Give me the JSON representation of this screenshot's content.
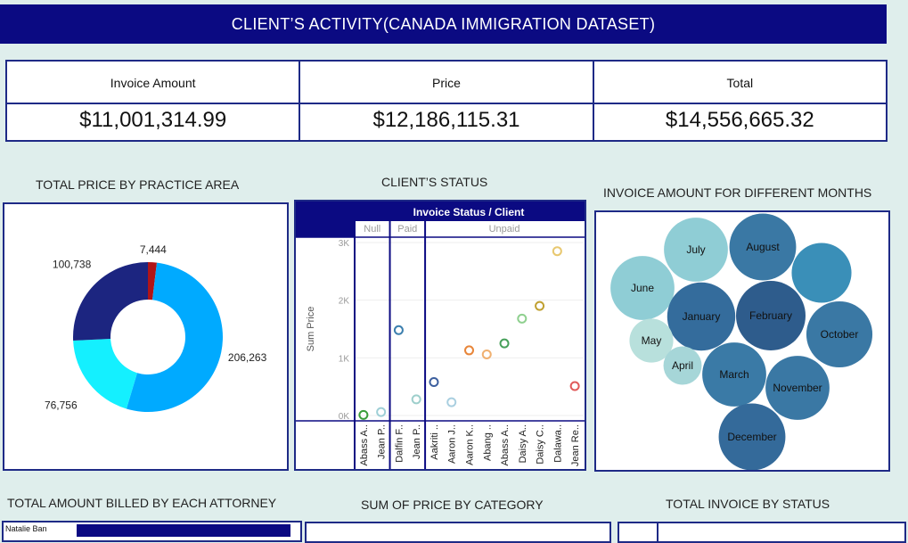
{
  "header": {
    "title": "CLIENT’S ACTIVITY(CANADA IMMIGRATION DATASET)"
  },
  "kpis": [
    {
      "label": "Invoice Amount",
      "value": "$11,001,314.99"
    },
    {
      "label": "Price",
      "value": "$12,186,115.31"
    },
    {
      "label": "Total",
      "value": "$14,556,665.32"
    }
  ],
  "sections": {
    "practice_area": "TOTAL  PRICE BY PRACTICE AREA",
    "client_status": "CLIENT’S STATUS",
    "months": "INVOICE AMOUNT FOR DIFFERENT MONTHS",
    "attorney": "TOTAL AMOUNT BILLED BY  EACH ATTORNEY",
    "category": "SUM OF PRICE BY CATEGORY",
    "invoice_status": "TOTAL INVOICE BY STATUS"
  },
  "attorney_preview": {
    "first_label": "Natalie Ban"
  },
  "colors": {
    "header": "#0b0a82",
    "border": "#1e2a86",
    "background": "#dfeeec"
  },
  "chart_data": [
    {
      "type": "pie",
      "title": "TOTAL  PRICE BY PRACTICE AREA",
      "donut": true,
      "slices": [
        {
          "value": 7444,
          "label": "7,444",
          "color": "#b01418"
        },
        {
          "value": 206263,
          "label": "206,263",
          "color": "#00aaff"
        },
        {
          "value": 76756,
          "label": "76,756",
          "color": "#14f0ff"
        },
        {
          "value": 100738,
          "label": "100,738",
          "color": "#1c2580"
        }
      ]
    },
    {
      "type": "scatter",
      "title": "CLIENT’S STATUS",
      "header": "Invoice Status / Client",
      "ylabel": "Sum Price",
      "ylim": [
        0,
        3000
      ],
      "yticks": [
        {
          "v": 0,
          "label": "0K"
        },
        {
          "v": 1000,
          "label": "1K"
        },
        {
          "v": 2000,
          "label": "2K"
        },
        {
          "v": 3000,
          "label": "3K"
        }
      ],
      "groups": [
        {
          "name": "Null",
          "count": 2
        },
        {
          "name": "Paid",
          "count": 2
        },
        {
          "name": "Unpaid",
          "count": 9
        }
      ],
      "categories": [
        "Abass A..",
        "Jean P..",
        "Dalfin F..",
        "Jean P..",
        "Aakriti ..",
        "Aaron J..",
        "Aaron K..",
        "Abang ..",
        "Abass A..",
        "Daisy A..",
        "Daisy C..",
        "Dalawa..",
        "Jean Re.."
      ],
      "points": [
        {
          "v": 10,
          "color": "#3a9d3a"
        },
        {
          "v": 60,
          "color": "#9ecfd6"
        },
        {
          "v": 1480,
          "color": "#3c7fae"
        },
        {
          "v": 280,
          "color": "#9ecfcc"
        },
        {
          "v": 580,
          "color": "#3c5f9e"
        },
        {
          "v": 230,
          "color": "#a9cfe0"
        },
        {
          "v": 1130,
          "color": "#e8863a"
        },
        {
          "v": 1060,
          "color": "#f0b070"
        },
        {
          "v": 1250,
          "color": "#47a05a"
        },
        {
          "v": 1680,
          "color": "#8fd08f"
        },
        {
          "v": 1900,
          "color": "#c0a030"
        },
        {
          "v": 2850,
          "color": "#e8c870"
        },
        {
          "v": 510,
          "color": "#e05a5a"
        }
      ]
    },
    {
      "type": "bubble",
      "title": "INVOICE AMOUNT FOR DIFFERENT MONTHS",
      "bubbles": [
        {
          "label": "July",
          "rel": 0.92,
          "color": "#8fcdd5"
        },
        {
          "label": "August",
          "rel": 0.96,
          "color": "#3a78a4"
        },
        {
          "label": "",
          "rel": 0.86,
          "color": "#3a8fb8"
        },
        {
          "label": "June",
          "rel": 0.92,
          "color": "#8fcdd5"
        },
        {
          "label": "January",
          "rel": 0.98,
          "color": "#346c9c"
        },
        {
          "label": "February",
          "rel": 1.0,
          "color": "#2e5c8c"
        },
        {
          "label": "October",
          "rel": 0.95,
          "color": "#3a78a4"
        },
        {
          "label": "May",
          "rel": 0.63,
          "color": "#b8e0dc"
        },
        {
          "label": "April",
          "rel": 0.55,
          "color": "#a6d6d8"
        },
        {
          "label": "March",
          "rel": 0.92,
          "color": "#3a7aa6"
        },
        {
          "label": "November",
          "rel": 0.92,
          "color": "#3a78a4"
        },
        {
          "label": "December",
          "rel": 0.96,
          "color": "#346a9a"
        }
      ]
    }
  ]
}
